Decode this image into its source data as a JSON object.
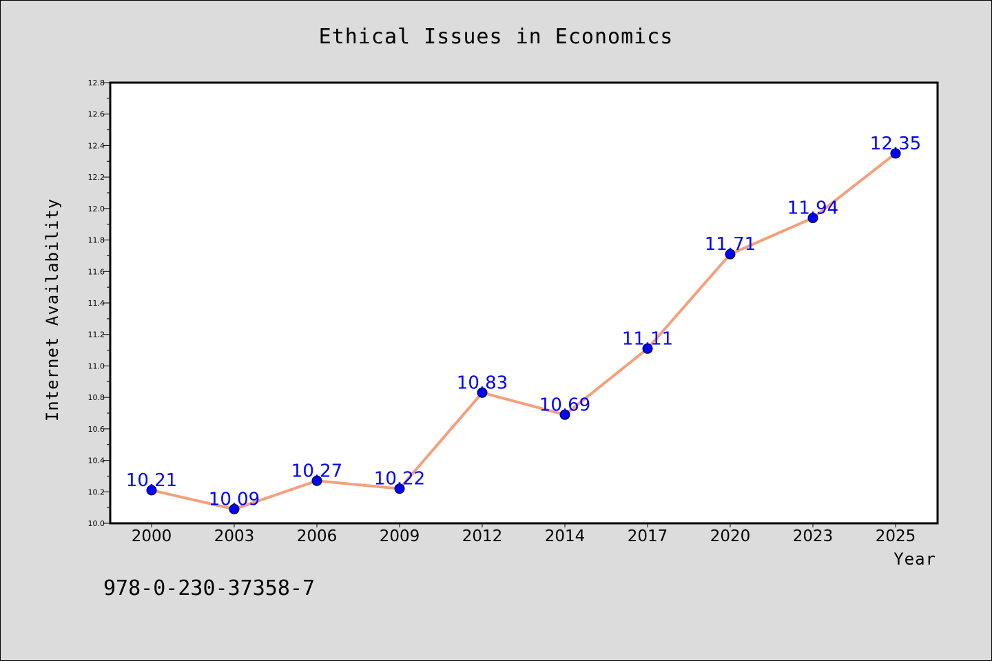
{
  "chart_data": {
    "type": "line",
    "title": "Ethical Issues in Economics",
    "xlabel": "Year",
    "ylabel": "Internet Availability",
    "categories": [
      "2000",
      "2003",
      "2006",
      "2009",
      "2012",
      "2014",
      "2017",
      "2020",
      "2023",
      "2025"
    ],
    "series": [
      {
        "values": [
          10.21,
          10.09,
          10.27,
          10.22,
          10.83,
          10.69,
          11.11,
          11.71,
          11.94,
          12.35
        ]
      }
    ],
    "data_labels": [
      "10.21",
      "10.09",
      "10.27",
      "10.22",
      "10.83",
      "10.69",
      "11.11",
      "11.71",
      "11.94",
      "12.35"
    ],
    "ylim": [
      10.0,
      12.8
    ],
    "yticks": [
      "10.0",
      "10.2",
      "10.4",
      "10.6",
      "10.8",
      "11.0",
      "11.2",
      "11.4",
      "11.6",
      "11.8",
      "12.0",
      "12.2",
      "12.4",
      "12.6",
      "12.8"
    ],
    "grid": false,
    "line_color": "#f4a07a",
    "marker_color": "#0000ff",
    "label_color": "#0000ff"
  },
  "footnote": "978-0-230-37358-7"
}
